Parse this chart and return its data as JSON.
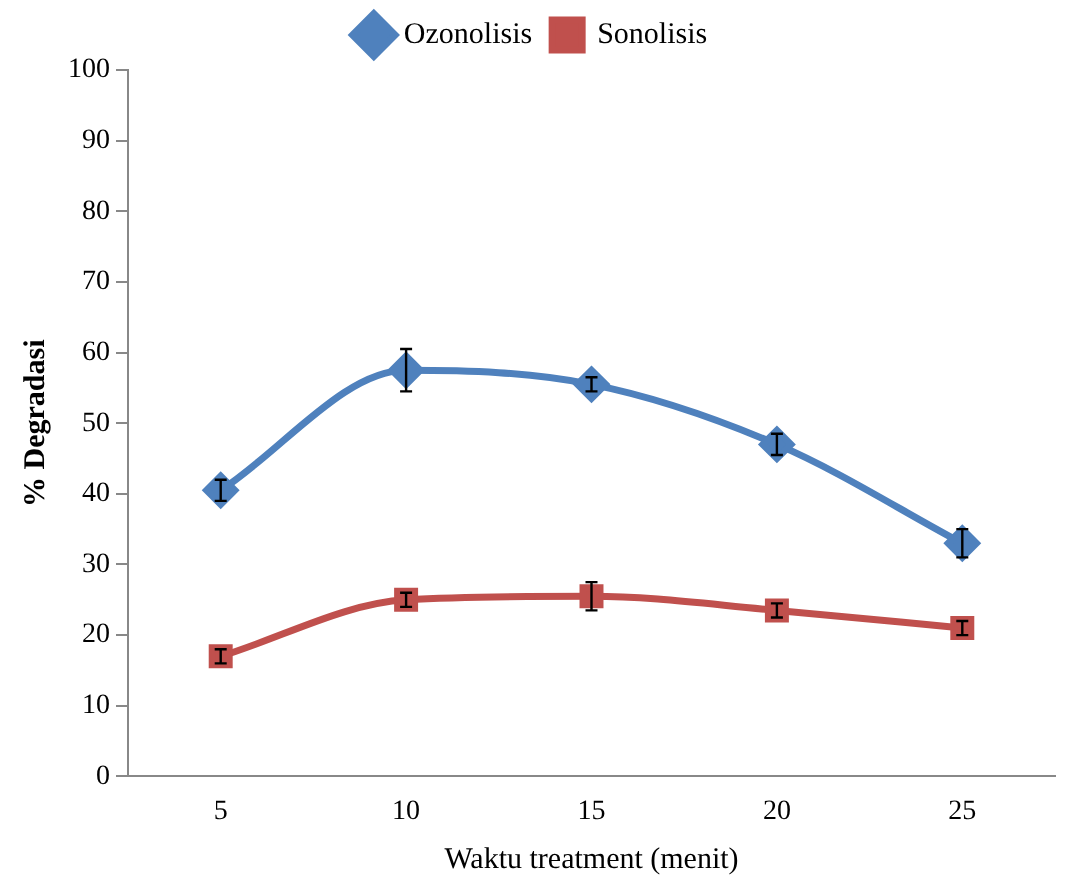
{
  "chart_data": {
    "type": "line",
    "xlabel": "Waktu treatment (menit)",
    "ylabel": "% Degradasi",
    "categories": [
      "5",
      "10",
      "15",
      "20",
      "25"
    ],
    "series": [
      {
        "name": "Ozonolisis",
        "color": "#4f81bd",
        "marker": "diamond",
        "values": [
          40.5,
          57.5,
          55.5,
          47,
          33
        ],
        "errors": [
          1.5,
          3,
          1,
          1.5,
          2
        ]
      },
      {
        "name": "Sonolisis",
        "color": "#c0504d",
        "marker": "square",
        "values": [
          17,
          25,
          25.5,
          23.5,
          21
        ],
        "errors": [
          1,
          1,
          2,
          1,
          1
        ]
      }
    ],
    "ylim": [
      0,
      100
    ],
    "yticks": [
      0,
      10,
      20,
      30,
      40,
      50,
      60,
      70,
      80,
      90,
      100
    ],
    "grid": false,
    "legend": "top"
  }
}
